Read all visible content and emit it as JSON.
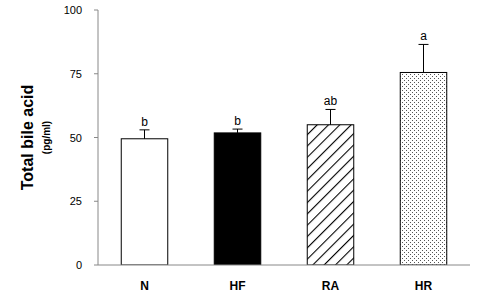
{
  "chart_data": {
    "type": "bar",
    "ylabel": "Total bile acid",
    "ylabel_unit": "(pg/ml)",
    "categories": [
      "N",
      "HF",
      "RA",
      "HR"
    ],
    "values": [
      49.5,
      51.8,
      55,
      75.5
    ],
    "errors": [
      3.5,
      1.5,
      6,
      11
    ],
    "annotations": [
      "b",
      "b",
      "ab",
      "a"
    ],
    "colors": [
      "#ffffff",
      "#000000",
      "#ffffff",
      "#ffffff"
    ],
    "ylim": [
      0,
      100
    ],
    "yticks": [
      0,
      25,
      50,
      75,
      100
    ],
    "grid": false
  }
}
